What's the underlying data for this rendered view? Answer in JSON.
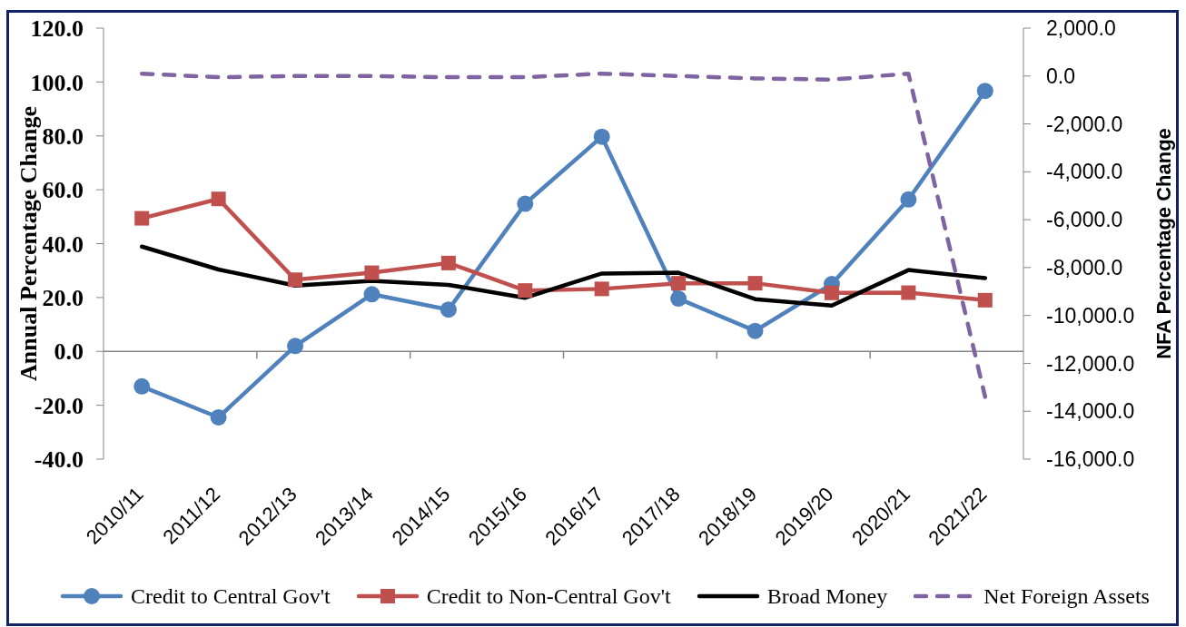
{
  "chart_data": {
    "type": "line",
    "ylabel": "Annual Percentage Change",
    "y2label": "NFA Percentage Change",
    "categories": [
      "2010/11",
      "2011/12",
      "2012/13",
      "2013/14",
      "2014/15",
      "2015/16",
      "2016/17",
      "2017/18",
      "2018/19",
      "2019/20",
      "2020/21",
      "2021/22"
    ],
    "series": [
      {
        "name": "Credit to Central Gov't",
        "color": "#4f81bd",
        "marker": "circle",
        "line_style": "solid",
        "values": [
          -13.0,
          -24.5,
          2.0,
          21.2,
          15.5,
          54.8,
          79.7,
          19.6,
          7.6,
          25.0,
          56.4,
          96.7
        ]
      },
      {
        "name": "Credit to Non-Central Gov't",
        "color": "#c0504d",
        "marker": "square",
        "line_style": "solid",
        "values": [
          49.4,
          56.6,
          26.6,
          29.2,
          32.8,
          22.6,
          23.2,
          25.3,
          25.3,
          21.7,
          21.8,
          19.0
        ]
      },
      {
        "name": "Broad Money",
        "color": "#000000",
        "marker": "none",
        "line_style": "solid",
        "values": [
          38.9,
          30.4,
          24.4,
          26.2,
          24.7,
          19.9,
          28.9,
          29.2,
          19.4,
          17.0,
          30.2,
          27.2
        ]
      },
      {
        "name": "Net Foreign Assets",
        "color": "#8064a2",
        "marker": "none",
        "line_style": "dashed",
        "axis": "y2",
        "values": [
          100,
          -50,
          0,
          0,
          -50,
          -50,
          100,
          0,
          -100,
          -150,
          100,
          -13400
        ]
      }
    ],
    "ylim": [
      -40,
      120
    ],
    "yticks": [
      {
        "value": -40,
        "label": "-40.0"
      },
      {
        "value": -20,
        "label": "-20.0"
      },
      {
        "value": 0,
        "label": "0.0"
      },
      {
        "value": 20,
        "label": "20.0"
      },
      {
        "value": 40,
        "label": "40.0"
      },
      {
        "value": 60,
        "label": "60.0"
      },
      {
        "value": 80,
        "label": "80.0"
      },
      {
        "value": 100,
        "label": "100.0"
      },
      {
        "value": 120,
        "label": "120.0"
      }
    ],
    "y2lim": [
      -16000,
      2000
    ],
    "y2ticks": [
      {
        "value": -16000,
        "label": "-16,000.0"
      },
      {
        "value": -14000,
        "label": "-14,000.0"
      },
      {
        "value": -12000,
        "label": "-12,000.0"
      },
      {
        "value": -10000,
        "label": "-10,000.0"
      },
      {
        "value": -8000,
        "label": "-8,000.0"
      },
      {
        "value": -6000,
        "label": "-6,000.0"
      },
      {
        "value": -4000,
        "label": "-4,000.0"
      },
      {
        "value": -2000,
        "label": "-2,000.0"
      },
      {
        "value": 0,
        "label": "0.0"
      },
      {
        "value": 2000,
        "label": "2,000.0"
      }
    ],
    "legend": "bottom"
  }
}
